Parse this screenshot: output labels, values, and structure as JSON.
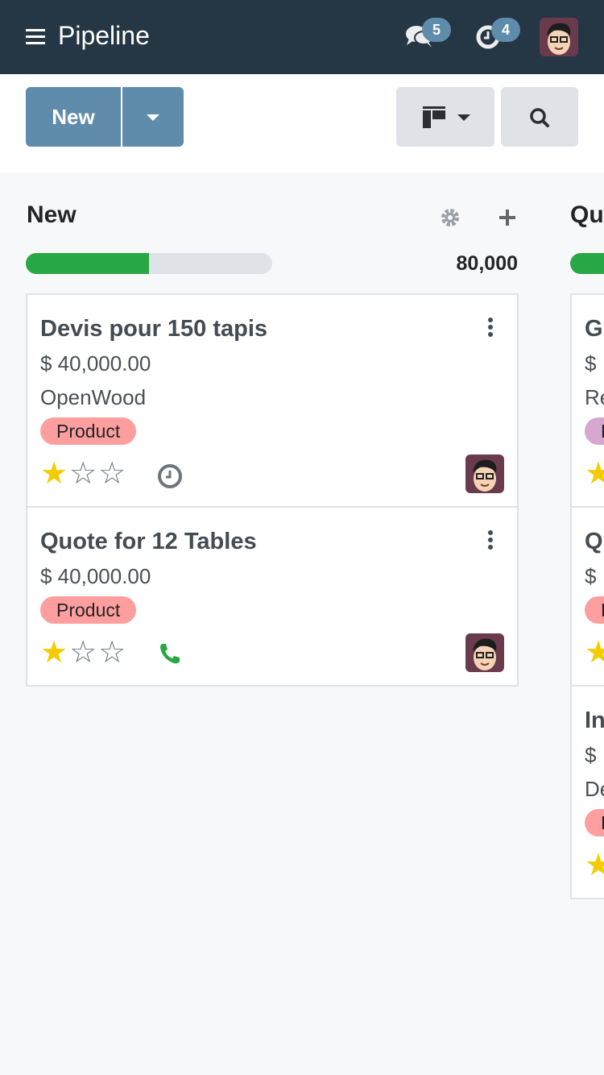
{
  "topbar": {
    "title": "Pipeline",
    "messages_count": "5",
    "activities_count": "4"
  },
  "control": {
    "new_label": "New"
  },
  "columns": [
    {
      "title": "New",
      "total": "80,000",
      "progress_percent": 50,
      "cards": [
        {
          "name": "Devis pour 150 tapis",
          "amount": "$ 40,000.00",
          "company": "OpenWood",
          "tag": "Product",
          "tag_color": "#ff9e9e",
          "stars": 1,
          "activity": "clock-icon"
        },
        {
          "name": "Quote for 12 Tables",
          "amount": "$ 40,000.00",
          "tag": "Product",
          "tag_color": "#ff9e9e",
          "stars": 1,
          "activity": "phone-icon"
        }
      ]
    },
    {
      "title": "Qu",
      "cards": [
        {
          "name": "Gl",
          "amount": "$ .",
          "company": "Re",
          "tag": "D",
          "tag_color": "#d7a8cf",
          "stars": 1
        },
        {
          "name": "Q",
          "amount": "$ .",
          "tag": "P",
          "tag_color": "#ff9e9e",
          "stars": 1
        },
        {
          "name": "In",
          "amount": "$ .",
          "company": "De",
          "tag": "P",
          "tag_color": "#ff9e9e",
          "stars": 1
        }
      ]
    }
  ],
  "colors": {
    "topbar": "#253645",
    "primary": "#5f8cab",
    "progress": "#28a745",
    "star": "#f3cc00"
  }
}
